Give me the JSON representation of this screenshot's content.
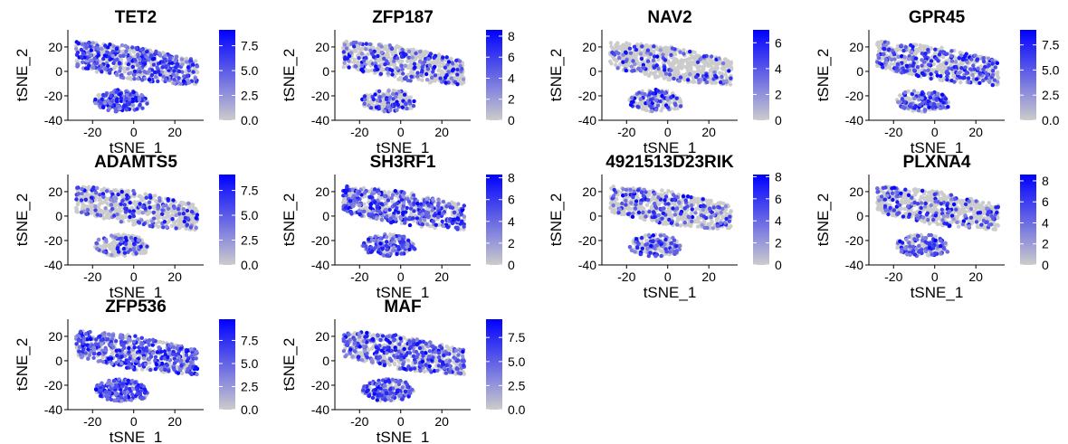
{
  "chart_data": [
    {
      "type": "scatter",
      "title": "TET2",
      "xlabel": "tSNE_1",
      "ylabel": "tSNE_2",
      "xlim": [
        -32,
        34
      ],
      "ylim": [
        -40,
        34
      ],
      "xticks": [
        -20,
        0,
        20
      ],
      "yticks": [
        -40,
        -20,
        0,
        20
      ],
      "xtick_labels": [
        "-20",
        "0",
        "20"
      ],
      "ytick_labels": [
        "-40",
        "-20",
        "0",
        "20"
      ],
      "legend": {
        "min": 0,
        "max": 9.1,
        "ticks": [
          "0.0",
          "2.5",
          "5.0",
          "7.5"
        ],
        "tick_values": [
          0,
          2.5,
          5,
          7.5
        ],
        "low_color": "#cccccc",
        "high_color": "#0000ff"
      },
      "expression_density": 0.55,
      "seed": 11
    },
    {
      "type": "scatter",
      "title": "ZFP187",
      "xlabel": "tSNE_1",
      "ylabel": "tSNE_2",
      "xlim": [
        -32,
        34
      ],
      "ylim": [
        -40,
        34
      ],
      "xticks": [
        -20,
        0,
        20
      ],
      "yticks": [
        -40,
        -20,
        0,
        20
      ],
      "xtick_labels": [
        "-20",
        "0",
        "20"
      ],
      "ytick_labels": [
        "-40",
        "-20",
        "0",
        "20"
      ],
      "legend": {
        "min": 0,
        "max": 8.6,
        "ticks": [
          "0",
          "2",
          "4",
          "6",
          "8"
        ],
        "tick_values": [
          0,
          2,
          4,
          6,
          8
        ],
        "low_color": "#cccccc",
        "high_color": "#0000ff"
      },
      "expression_density": 0.25,
      "seed": 23
    },
    {
      "type": "scatter",
      "title": "NAV2",
      "xlabel": "tSNE_1",
      "ylabel": "tSNE_2",
      "xlim": [
        -32,
        34
      ],
      "ylim": [
        -40,
        34
      ],
      "xticks": [
        -20,
        0,
        20
      ],
      "yticks": [
        -40,
        -20,
        0,
        20
      ],
      "xtick_labels": [
        "-20",
        "0",
        "20"
      ],
      "ytick_labels": [
        "-40",
        "-20",
        "0",
        "20"
      ],
      "legend": {
        "min": 0,
        "max": 7.0,
        "ticks": [
          "0",
          "2",
          "4",
          "6"
        ],
        "tick_values": [
          0,
          2,
          4,
          6
        ],
        "low_color": "#cccccc",
        "high_color": "#0000ff"
      },
      "expression_density": 0.2,
      "seed": 37
    },
    {
      "type": "scatter",
      "title": "GPR45",
      "xlabel": "tSNE_1",
      "ylabel": "tSNE_2",
      "xlim": [
        -32,
        34
      ],
      "ylim": [
        -40,
        34
      ],
      "xticks": [
        -20,
        0,
        20
      ],
      "yticks": [
        -40,
        -20,
        0,
        20
      ],
      "xtick_labels": [
        "-20",
        "0",
        "20"
      ],
      "ytick_labels": [
        "-40",
        "-20",
        "0",
        "20"
      ],
      "legend": {
        "min": 0,
        "max": 9.0,
        "ticks": [
          "0.0",
          "2.5",
          "5.0",
          "7.5"
        ],
        "tick_values": [
          0,
          2.5,
          5,
          7.5
        ],
        "low_color": "#cccccc",
        "high_color": "#0000ff"
      },
      "expression_density": 0.35,
      "seed": 41
    },
    {
      "type": "scatter",
      "title": "ADAMTS5",
      "xlabel": "tSNE_1",
      "ylabel": "tSNE_2",
      "xlim": [
        -32,
        34
      ],
      "ylim": [
        -40,
        34
      ],
      "xticks": [
        -20,
        0,
        20
      ],
      "yticks": [
        -40,
        -20,
        0,
        20
      ],
      "xtick_labels": [
        "-20",
        "0",
        "20"
      ],
      "ytick_labels": [
        "-40",
        "-20",
        "0",
        "20"
      ],
      "legend": {
        "min": 0,
        "max": 9.1,
        "ticks": [
          "0.0",
          "2.5",
          "5.0",
          "7.5"
        ],
        "tick_values": [
          0,
          2.5,
          5,
          7.5
        ],
        "low_color": "#cccccc",
        "high_color": "#0000ff"
      },
      "expression_density": 0.2,
      "seed": 53
    },
    {
      "type": "scatter",
      "title": "SH3RF1",
      "xlabel": "tSNE_1",
      "ylabel": "tSNE_2",
      "xlim": [
        -32,
        34
      ],
      "ylim": [
        -40,
        34
      ],
      "xticks": [
        -20,
        0,
        20
      ],
      "yticks": [
        -40,
        -20,
        0,
        20
      ],
      "xtick_labels": [
        "-20",
        "0",
        "20"
      ],
      "ytick_labels": [
        "-40",
        "-20",
        "0",
        "20"
      ],
      "legend": {
        "min": 0,
        "max": 8.3,
        "ticks": [
          "0",
          "2",
          "4",
          "6",
          "8"
        ],
        "tick_values": [
          0,
          2,
          4,
          6,
          8
        ],
        "low_color": "#cccccc",
        "high_color": "#0000ff"
      },
      "expression_density": 0.5,
      "seed": 67
    },
    {
      "type": "scatter",
      "title": "4921513D23RIK",
      "xlabel": "tSNE_1",
      "ylabel": "tSNE_2",
      "xlim": [
        -32,
        34
      ],
      "ylim": [
        -40,
        34
      ],
      "xticks": [
        -20,
        0,
        20
      ],
      "yticks": [
        -40,
        -20,
        0,
        20
      ],
      "xtick_labels": [
        "-20",
        "0",
        "20"
      ],
      "ytick_labels": [
        "-40",
        "-20",
        "0",
        "20"
      ],
      "legend": {
        "min": 0,
        "max": 8.2,
        "ticks": [
          "0",
          "2",
          "4",
          "6",
          "8"
        ],
        "tick_values": [
          0,
          2,
          4,
          6,
          8
        ],
        "low_color": "#cccccc",
        "high_color": "#0000ff"
      },
      "expression_density": 0.25,
      "seed": 71
    },
    {
      "type": "scatter",
      "title": "PLXNA4",
      "xlabel": "tSNE_1",
      "ylabel": "tSNE_2",
      "xlim": [
        -32,
        34
      ],
      "ylim": [
        -40,
        34
      ],
      "xticks": [
        -20,
        0,
        20
      ],
      "yticks": [
        -40,
        -20,
        0,
        20
      ],
      "xtick_labels": [
        "-20",
        "0",
        "20"
      ],
      "ytick_labels": [
        "-40",
        "-20",
        "0",
        "20"
      ],
      "legend": {
        "min": 0,
        "max": 8.6,
        "ticks": [
          "0",
          "2",
          "4",
          "6",
          "8"
        ],
        "tick_values": [
          0,
          2,
          4,
          6,
          8
        ],
        "low_color": "#cccccc",
        "high_color": "#0000ff"
      },
      "expression_density": 0.25,
      "seed": 83
    },
    {
      "type": "scatter",
      "title": "ZFP536",
      "xlabel": "tSNE_1",
      "ylabel": "tSNE_2",
      "xlim": [
        -32,
        34
      ],
      "ylim": [
        -40,
        34
      ],
      "xticks": [
        -20,
        0,
        20
      ],
      "yticks": [
        -40,
        -20,
        0,
        20
      ],
      "xtick_labels": [
        "-20",
        "0",
        "20"
      ],
      "ytick_labels": [
        "-40",
        "-20",
        "0",
        "20"
      ],
      "legend": {
        "min": 0,
        "max": 9.8,
        "ticks": [
          "0.0",
          "2.5",
          "5.0",
          "7.5"
        ],
        "tick_values": [
          0,
          2.5,
          5,
          7.5
        ],
        "low_color": "#cccccc",
        "high_color": "#0000ff"
      },
      "expression_density": 0.6,
      "seed": 97
    },
    {
      "type": "scatter",
      "title": "MAF",
      "xlabel": "tSNE_1",
      "ylabel": "tSNE_2",
      "xlim": [
        -32,
        34
      ],
      "ylim": [
        -40,
        34
      ],
      "xticks": [
        -20,
        0,
        20
      ],
      "yticks": [
        -40,
        -20,
        0,
        20
      ],
      "xtick_labels": [
        "-20",
        "0",
        "20"
      ],
      "ytick_labels": [
        "-40",
        "-20",
        "0",
        "20"
      ],
      "legend": {
        "min": 0,
        "max": 9.4,
        "ticks": [
          "0.0",
          "2.5",
          "5.0",
          "7.5"
        ],
        "tick_values": [
          0,
          2.5,
          5,
          7.5
        ],
        "low_color": "#cccccc",
        "high_color": "#0000ff"
      },
      "expression_density": 0.45,
      "seed": 101
    }
  ]
}
